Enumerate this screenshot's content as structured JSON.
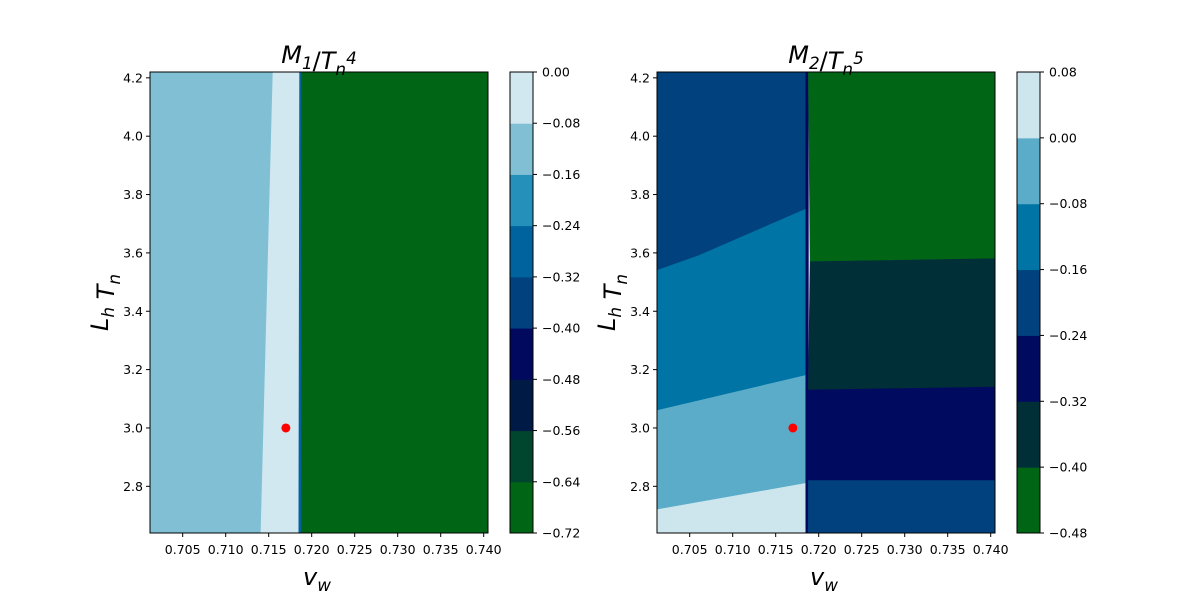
{
  "chart_data": [
    {
      "type": "contourf",
      "title": "M_1/T_n^4",
      "xlabel": "v_w",
      "ylabel": "L_h T_n",
      "xlim": [
        0.7012,
        0.7405
      ],
      "ylim": [
        2.64,
        4.22
      ],
      "xticks": [
        "0.705",
        "0.710",
        "0.715",
        "0.720",
        "0.725",
        "0.730",
        "0.735",
        "0.740"
      ],
      "yticks": [
        "2.8",
        "3.0",
        "3.2",
        "3.4",
        "3.6",
        "3.8",
        "4.0",
        "4.2"
      ],
      "colorbar": {
        "ticks": [
          "0.00",
          "−0.08",
          "−0.16",
          "−0.24",
          "−0.32",
          "−0.40",
          "−0.48",
          "−0.56",
          "−0.64",
          "−0.72"
        ],
        "levels": [
          -0.72,
          -0.64,
          -0.56,
          -0.48,
          -0.4,
          -0.32,
          -0.24,
          -0.16,
          -0.08,
          0.0
        ],
        "colors": [
          "#006616",
          "#00452d",
          "#001a46",
          "#00095e",
          "#01417e",
          "#00639e",
          "#2590ba",
          "#80bfd4",
          "#d2e8f0"
        ]
      },
      "regions": [
        {
          "band": "[-0.16,-0.08]",
          "color": "#80bfd4",
          "x": [
            0.7012,
            0.7155,
            0.7141,
            0.7012
          ],
          "y": [
            4.22,
            4.22,
            2.64,
            2.64
          ]
        },
        {
          "band": "[-0.08,0.00]",
          "color": "#d2e8f0",
          "x": [
            0.7155,
            0.7172,
            0.718,
            0.718,
            0.7141
          ],
          "y": [
            4.22,
            4.22,
            4.05,
            2.64,
            2.64
          ]
        },
        {
          "band": "[-0.08,0.00]",
          "color": "#d2e8f0",
          "x": [
            0.7172,
            0.7186,
            0.7185,
            0.718
          ],
          "y": [
            4.22,
            4.22,
            2.64,
            2.64
          ]
        },
        {
          "band": "[-0.32,-0.24]",
          "color": "#00639e",
          "x": [
            0.7186,
            0.7188,
            0.7188,
            0.7185
          ],
          "y": [
            4.22,
            4.22,
            2.64,
            2.64
          ]
        },
        {
          "band": "[-0.72,-0.64]",
          "color": "#006616",
          "x": [
            0.7188,
            0.7405,
            0.7405,
            0.7188
          ],
          "y": [
            4.22,
            4.22,
            2.64,
            2.64
          ]
        }
      ],
      "marker": {
        "x": 0.717,
        "y": 3.0,
        "color": "#ff0000"
      }
    },
    {
      "type": "contourf",
      "title": "M_2/T_n^5",
      "xlabel": "v_w",
      "ylabel": "L_h T_n",
      "xlim": [
        0.7012,
        0.7405
      ],
      "ylim": [
        2.64,
        4.22
      ],
      "xticks": [
        "0.705",
        "0.710",
        "0.715",
        "0.720",
        "0.725",
        "0.730",
        "0.735",
        "0.740"
      ],
      "yticks": [
        "2.8",
        "3.0",
        "3.2",
        "3.4",
        "3.6",
        "3.8",
        "4.0",
        "4.2"
      ],
      "colorbar": {
        "ticks": [
          "0.08",
          "0.00",
          "−0.08",
          "−0.16",
          "−0.24",
          "−0.32",
          "−0.40",
          "−0.48"
        ],
        "levels": [
          -0.48,
          -0.4,
          -0.32,
          -0.24,
          -0.16,
          -0.08,
          0.0,
          0.08
        ],
        "colors": [
          "#006616",
          "#002f38",
          "#000a5e",
          "#01417e",
          "#0074a4",
          "#5bacc8",
          "#cde6ee"
        ]
      },
      "regions": [
        {
          "band": "[-0.24,-0.16]",
          "color": "#01417e",
          "x": [
            0.7012,
            0.7186,
            0.7185,
            0.706,
            0.7012
          ],
          "y": [
            4.22,
            4.22,
            3.75,
            3.59,
            3.54
          ]
        },
        {
          "band": "[-0.16,-0.08]",
          "color": "#0074a4",
          "x": [
            0.7012,
            0.706,
            0.7185,
            0.7185,
            0.7012
          ],
          "y": [
            3.54,
            3.59,
            3.75,
            3.18,
            3.06
          ]
        },
        {
          "band": "[-0.08,0.00]",
          "color": "#5bacc8",
          "x": [
            0.7012,
            0.7185,
            0.7185,
            0.7012
          ],
          "y": [
            3.06,
            3.18,
            2.81,
            2.72
          ]
        },
        {
          "band": "[0.00,0.08]",
          "color": "#cde6ee",
          "x": [
            0.7012,
            0.7185,
            0.7185,
            0.7012
          ],
          "y": [
            2.72,
            2.81,
            2.64,
            2.64
          ]
        },
        {
          "band": "[-0.32,-0.24]",
          "color": "#00095e",
          "x": [
            0.7185,
            0.7188,
            0.7188,
            0.7185
          ],
          "y": [
            4.22,
            4.22,
            2.64,
            2.64
          ]
        },
        {
          "band": "[-0.48,-0.40]",
          "color": "#006616",
          "x": [
            0.7188,
            0.7405,
            0.7405,
            0.719
          ],
          "y": [
            4.22,
            4.22,
            3.58,
            3.57
          ]
        },
        {
          "band": "[-0.40,-0.32]",
          "color": "#002f38",
          "x": [
            0.719,
            0.7405,
            0.7405,
            0.7188
          ],
          "y": [
            3.57,
            3.58,
            3.14,
            3.13
          ]
        },
        {
          "band": "[-0.32,-0.24]",
          "color": "#000a5e",
          "x": [
            0.7188,
            0.7405,
            0.7405,
            0.7188
          ],
          "y": [
            3.13,
            3.14,
            2.82,
            2.82
          ]
        },
        {
          "band": "[-0.24,-0.16]",
          "color": "#01417e",
          "x": [
            0.7188,
            0.7405,
            0.7405,
            0.7188
          ],
          "y": [
            2.82,
            2.82,
            2.64,
            2.64
          ]
        }
      ],
      "marker": {
        "x": 0.717,
        "y": 3.0,
        "color": "#ff0000"
      }
    }
  ]
}
